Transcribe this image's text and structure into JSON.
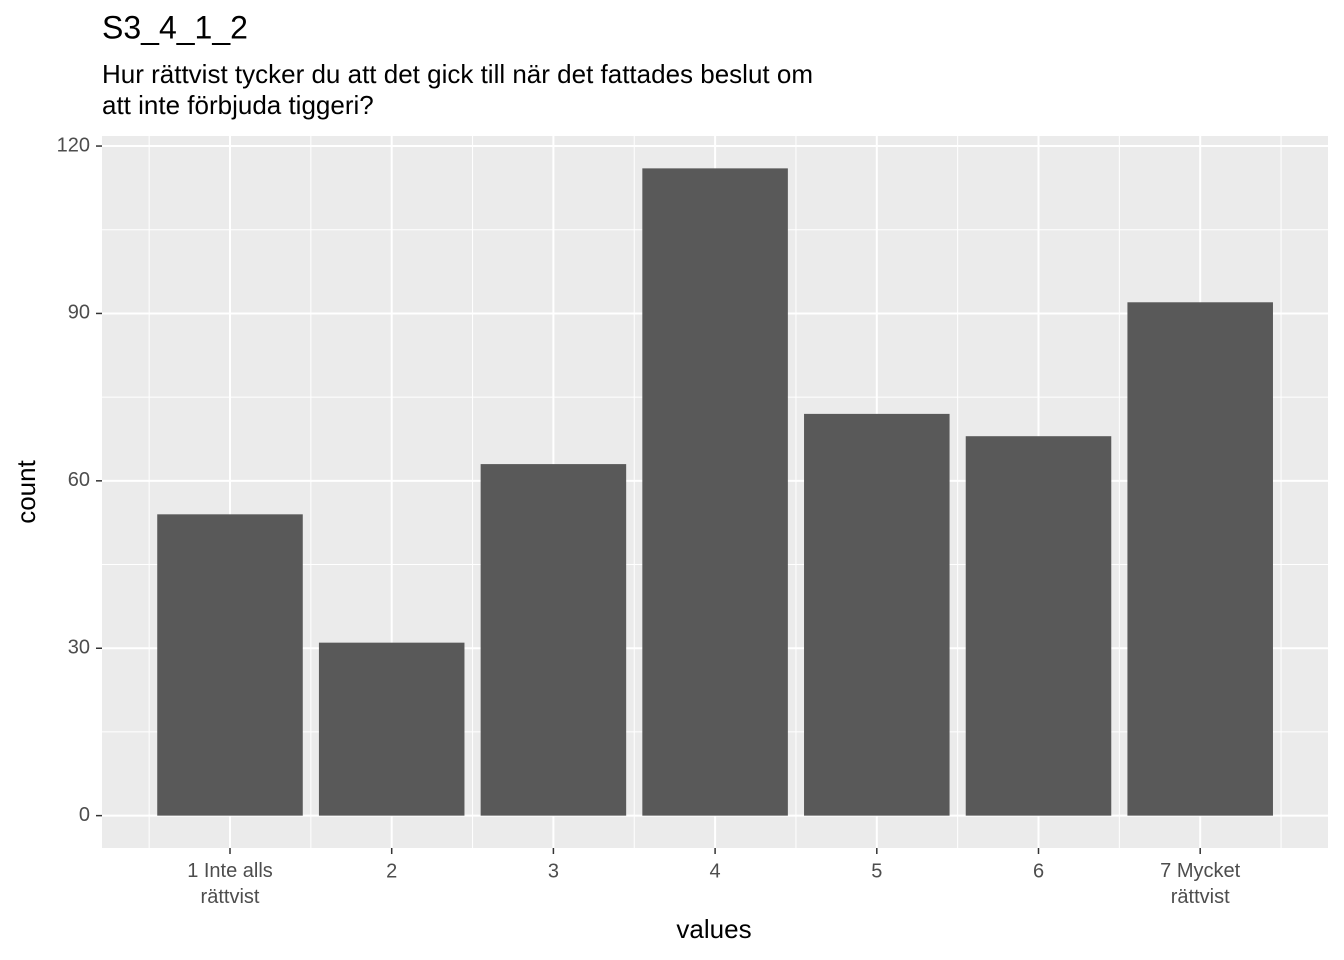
{
  "chart_data": {
    "type": "bar",
    "title": "S3_4_1_2",
    "subtitle": "Hur rättvist tycker du att det gick till när det fattades beslut om\natt inte förbjuda tiggeri?",
    "x_label": "values",
    "y_label": "count",
    "categories": [
      "1 Inte alls\nrättvist",
      "2",
      "3",
      "4",
      "5",
      "6",
      "7 Mycket\nrättvist"
    ],
    "values": [
      54,
      31,
      63,
      116,
      72,
      68,
      92
    ],
    "color": "#595959",
    "ylim": [
      -5.8,
      121.8
    ],
    "yticks": [
      0,
      30,
      60,
      90,
      120
    ],
    "grid": true
  }
}
